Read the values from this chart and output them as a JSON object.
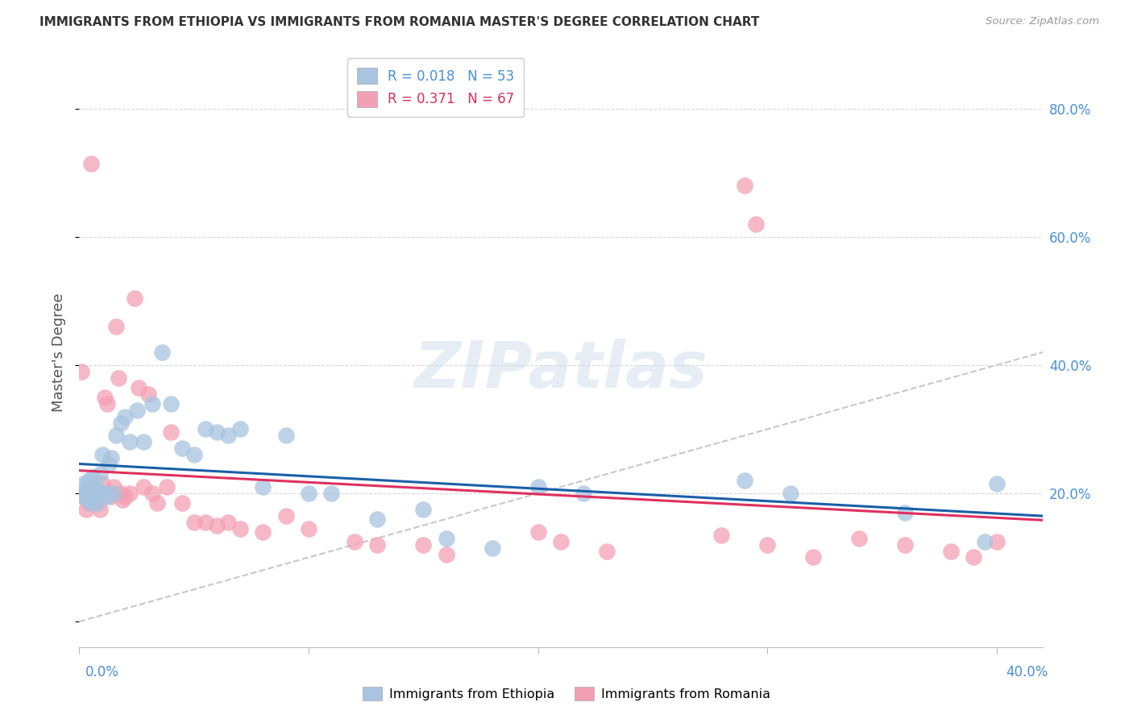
{
  "title": "IMMIGRANTS FROM ETHIOPIA VS IMMIGRANTS FROM ROMANIA MASTER'S DEGREE CORRELATION CHART",
  "source": "Source: ZipAtlas.com",
  "ylabel": "Master's Degree",
  "xlim": [
    0.0,
    0.42
  ],
  "ylim": [
    -0.04,
    0.88
  ],
  "yticks": [
    0.2,
    0.4,
    0.6,
    0.8
  ],
  "ytick_labels": [
    "20.0%",
    "40.0%",
    "60.0%",
    "80.0%"
  ],
  "R_ethiopia": 0.018,
  "N_ethiopia": 53,
  "R_romania": 0.371,
  "N_romania": 67,
  "color_ethiopia": "#a8c4e0",
  "color_romania": "#f4a0b4",
  "line_color_ethiopia": "#1a5fa8",
  "line_color_romania": "#e03060",
  "diagonal_color": "#c8c8c8",
  "watermark": "ZIPatlas",
  "ethiopia_x": [
    0.001,
    0.002,
    0.002,
    0.003,
    0.003,
    0.004,
    0.004,
    0.005,
    0.005,
    0.006,
    0.006,
    0.007,
    0.007,
    0.008,
    0.008,
    0.009,
    0.01,
    0.01,
    0.011,
    0.012,
    0.013,
    0.014,
    0.015,
    0.016,
    0.018,
    0.02,
    0.022,
    0.025,
    0.028,
    0.032,
    0.036,
    0.04,
    0.045,
    0.05,
    0.055,
    0.06,
    0.065,
    0.07,
    0.08,
    0.09,
    0.1,
    0.11,
    0.13,
    0.15,
    0.16,
    0.18,
    0.2,
    0.22,
    0.29,
    0.31,
    0.36,
    0.395,
    0.4
  ],
  "ethiopia_y": [
    0.2,
    0.195,
    0.215,
    0.205,
    0.21,
    0.19,
    0.22,
    0.185,
    0.21,
    0.2,
    0.225,
    0.195,
    0.21,
    0.2,
    0.185,
    0.23,
    0.26,
    0.2,
    0.2,
    0.195,
    0.245,
    0.255,
    0.2,
    0.29,
    0.31,
    0.32,
    0.28,
    0.33,
    0.28,
    0.34,
    0.42,
    0.34,
    0.27,
    0.26,
    0.3,
    0.295,
    0.29,
    0.3,
    0.21,
    0.29,
    0.2,
    0.2,
    0.16,
    0.175,
    0.13,
    0.115,
    0.21,
    0.2,
    0.22,
    0.2,
    0.17,
    0.125,
    0.215
  ],
  "romania_x": [
    0.001,
    0.001,
    0.002,
    0.002,
    0.003,
    0.003,
    0.004,
    0.004,
    0.005,
    0.005,
    0.005,
    0.006,
    0.006,
    0.007,
    0.007,
    0.008,
    0.008,
    0.009,
    0.009,
    0.01,
    0.01,
    0.011,
    0.012,
    0.013,
    0.014,
    0.015,
    0.016,
    0.017,
    0.018,
    0.019,
    0.02,
    0.022,
    0.024,
    0.026,
    0.028,
    0.03,
    0.032,
    0.034,
    0.038,
    0.04,
    0.045,
    0.05,
    0.055,
    0.06,
    0.065,
    0.07,
    0.08,
    0.09,
    0.1,
    0.12,
    0.13,
    0.15,
    0.16,
    0.2,
    0.21,
    0.23,
    0.28,
    0.29,
    0.295,
    0.3,
    0.32,
    0.34,
    0.36,
    0.38,
    0.39,
    0.4,
    0.005
  ],
  "romania_y": [
    0.39,
    0.2,
    0.195,
    0.2,
    0.175,
    0.195,
    0.2,
    0.185,
    0.205,
    0.19,
    0.2,
    0.185,
    0.2,
    0.2,
    0.195,
    0.19,
    0.2,
    0.195,
    0.175,
    0.2,
    0.215,
    0.35,
    0.34,
    0.2,
    0.195,
    0.21,
    0.46,
    0.38,
    0.2,
    0.19,
    0.195,
    0.2,
    0.505,
    0.365,
    0.21,
    0.355,
    0.2,
    0.185,
    0.21,
    0.295,
    0.185,
    0.155,
    0.155,
    0.15,
    0.155,
    0.145,
    0.14,
    0.165,
    0.145,
    0.125,
    0.12,
    0.12,
    0.105,
    0.14,
    0.125,
    0.11,
    0.135,
    0.68,
    0.62,
    0.12,
    0.1,
    0.13,
    0.12,
    0.11,
    0.1,
    0.125,
    0.715
  ]
}
